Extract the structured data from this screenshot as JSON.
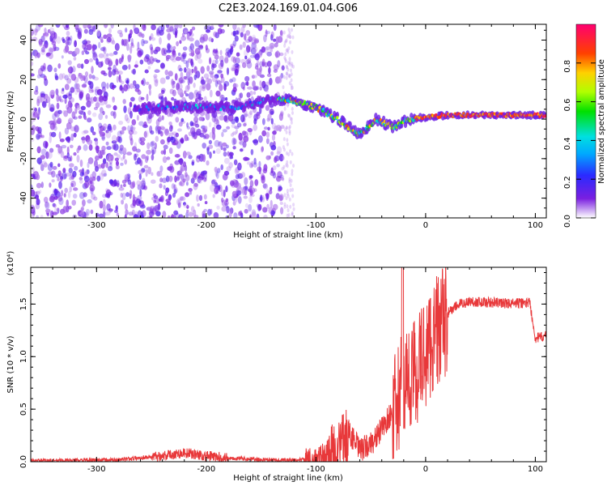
{
  "title": "C2E3.2024.169.01.04.G06",
  "colors": {
    "spectrum": "#7a1fe0",
    "snr_line": "#e8383a",
    "axis": "#000000"
  },
  "chart_data": [
    {
      "type": "heatmap",
      "xlabel": "Height of straight line (km)",
      "ylabel": "Frequency (Hz)",
      "xlim": [
        -360,
        110
      ],
      "ylim": [
        -50,
        48
      ],
      "xticks": [
        "-300",
        "-200",
        "-100",
        "0",
        "100"
      ],
      "yticks": [
        "-40",
        "-20",
        "0",
        "20",
        "40"
      ],
      "colorbar": {
        "label": "Normalized spectral amplitude",
        "range": [
          0,
          1
        ],
        "ticks": [
          "0.0",
          "0.2",
          "0.4",
          "0.6",
          "0.8"
        ]
      },
      "ridge": {
        "x": [
          -265,
          -240,
          -200,
          -170,
          -140,
          -125,
          -100,
          -80,
          -60,
          -45,
          -30,
          -15,
          0,
          20,
          60,
          100
        ],
        "y": [
          5,
          6,
          6,
          6,
          10,
          10,
          6,
          0,
          -8,
          0,
          -4,
          0,
          1,
          2,
          2,
          2
        ]
      }
    },
    {
      "type": "line",
      "xlabel": "Height of straight line (km)",
      "ylabel": "SNR (10 * v/v)",
      "yunit": "(x10⁴)",
      "xlim": [
        -360,
        110
      ],
      "ylim": [
        0,
        1.85
      ],
      "xticks": [
        "-300",
        "-200",
        "-100",
        "0",
        "100"
      ],
      "yticks": [
        "0.0",
        "0.5",
        "1.0",
        "1.5"
      ],
      "series": [
        {
          "x": [
            -360,
            -320,
            -280,
            -250,
            -220,
            -200,
            -180,
            -150,
            -120,
            -100,
            -80,
            -70,
            -60,
            -50,
            -40,
            -30,
            -25,
            -20,
            -15,
            -10,
            -5,
            0,
            10,
            20,
            30,
            40,
            60,
            80,
            95,
            100,
            110
          ],
          "y": [
            0.01,
            0.015,
            0.02,
            0.05,
            0.09,
            0.06,
            0.04,
            0.02,
            0.015,
            0.03,
            0.15,
            0.3,
            0.12,
            0.18,
            0.32,
            0.5,
            0.6,
            0.9,
            0.8,
            0.9,
            1.0,
            1.1,
            1.3,
            1.42,
            1.5,
            1.53,
            1.52,
            1.51,
            1.52,
            1.18,
            1.2
          ]
        }
      ]
    }
  ]
}
